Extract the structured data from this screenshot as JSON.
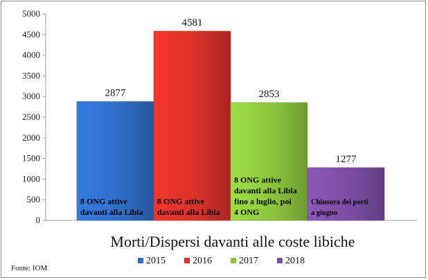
{
  "chart_data": {
    "type": "bar",
    "title": "Morti/Dispersi davanti alle coste libiche",
    "source": "Fonte: IOM",
    "categories": [
      "2015",
      "2016",
      "2017",
      "2018"
    ],
    "values": [
      2877,
      4581,
      2853,
      1277
    ],
    "colors": [
      "#2f6fc9",
      "#d9312a",
      "#8cc63e",
      "#7b4ea3"
    ],
    "annotations": [
      [
        "8 ONG attive",
        "davanti alla Libia"
      ],
      [
        "8 ONG attive",
        "davanti alla Libia"
      ],
      [
        "8 ONG attive",
        "davanti alla Libia",
        "fino a luglio, poi",
        "4 ONG"
      ],
      [
        "Chiusura dei porti",
        "a giugno"
      ]
    ],
    "ylim": [
      0,
      5000
    ],
    "yticks": [
      0,
      500,
      1000,
      1500,
      2000,
      2500,
      3000,
      3500,
      4000,
      4500,
      5000
    ],
    "xlabel": "",
    "ylabel": "",
    "legend_position": "bottom",
    "grid": false
  }
}
